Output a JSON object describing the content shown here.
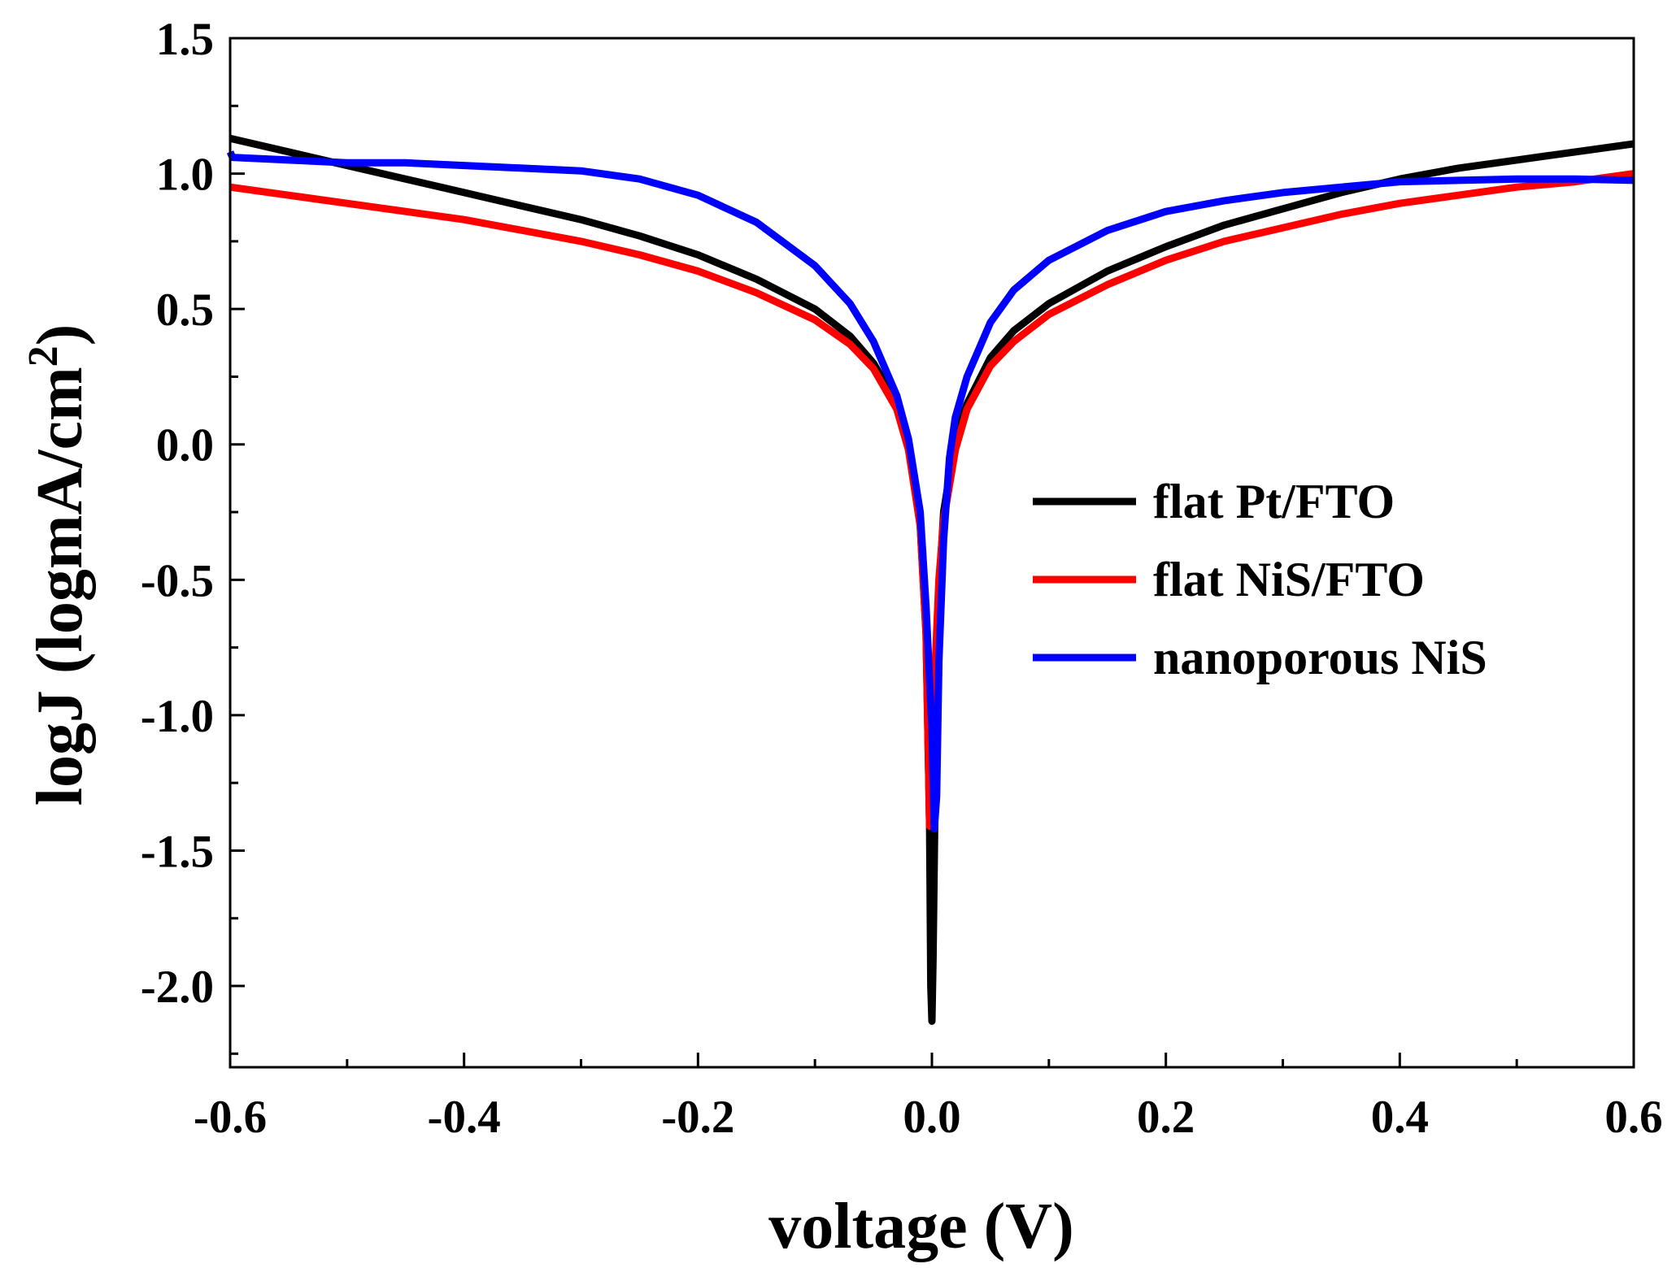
{
  "chart_data": {
    "type": "line",
    "title": "",
    "xlabel": "voltage (V)",
    "ylabel_main": "logJ (logmA/cm",
    "ylabel_sup": "2",
    "ylabel_close": ")",
    "xlim": [
      -0.6,
      0.6
    ],
    "ylim": [
      -2.3,
      1.5
    ],
    "x_ticks": [
      -0.6,
      -0.4,
      -0.2,
      0.0,
      0.2,
      0.4,
      0.6
    ],
    "x_tick_labels": [
      "-0.6",
      "-0.4",
      "-0.2",
      "0.0",
      "0.2",
      "0.4",
      "0.6"
    ],
    "y_ticks": [
      -2.0,
      -1.5,
      -1.0,
      -0.5,
      0.0,
      0.5,
      1.0,
      1.5
    ],
    "y_tick_labels": [
      "-2.0",
      "-1.5",
      "-1.0",
      "-0.5",
      "0.0",
      "0.5",
      "1.0",
      "1.5"
    ],
    "legend_position": "center-right",
    "series": [
      {
        "name": "flat Pt/FTO",
        "color": "#000000",
        "points": [
          [
            -0.6,
            1.13
          ],
          [
            -0.55,
            1.08
          ],
          [
            -0.5,
            1.03
          ],
          [
            -0.45,
            0.98
          ],
          [
            -0.4,
            0.93
          ],
          [
            -0.35,
            0.88
          ],
          [
            -0.3,
            0.83
          ],
          [
            -0.25,
            0.77
          ],
          [
            -0.2,
            0.7
          ],
          [
            -0.15,
            0.61
          ],
          [
            -0.1,
            0.5
          ],
          [
            -0.07,
            0.4
          ],
          [
            -0.05,
            0.3
          ],
          [
            -0.03,
            0.15
          ],
          [
            -0.02,
            0.0
          ],
          [
            -0.01,
            -0.3
          ],
          [
            -0.005,
            -0.7
          ],
          [
            -0.002,
            -1.4
          ],
          [
            -0.001,
            -2.0
          ],
          [
            0.0,
            -2.13
          ],
          [
            0.001,
            -1.9
          ],
          [
            0.003,
            -1.2
          ],
          [
            0.006,
            -0.55
          ],
          [
            0.01,
            -0.25
          ],
          [
            0.02,
            0.02
          ],
          [
            0.03,
            0.15
          ],
          [
            0.05,
            0.32
          ],
          [
            0.07,
            0.42
          ],
          [
            0.1,
            0.52
          ],
          [
            0.15,
            0.64
          ],
          [
            0.2,
            0.73
          ],
          [
            0.25,
            0.81
          ],
          [
            0.3,
            0.87
          ],
          [
            0.35,
            0.93
          ],
          [
            0.4,
            0.98
          ],
          [
            0.45,
            1.02
          ],
          [
            0.5,
            1.05
          ],
          [
            0.55,
            1.08
          ],
          [
            0.6,
            1.11
          ]
        ]
      },
      {
        "name": "flat NiS/FTO",
        "color": "#ff0000",
        "points": [
          [
            -0.6,
            0.95
          ],
          [
            -0.55,
            0.92
          ],
          [
            -0.5,
            0.89
          ],
          [
            -0.45,
            0.86
          ],
          [
            -0.4,
            0.83
          ],
          [
            -0.35,
            0.79
          ],
          [
            -0.3,
            0.75
          ],
          [
            -0.25,
            0.7
          ],
          [
            -0.2,
            0.64
          ],
          [
            -0.15,
            0.56
          ],
          [
            -0.1,
            0.46
          ],
          [
            -0.07,
            0.37
          ],
          [
            -0.05,
            0.28
          ],
          [
            -0.03,
            0.13
          ],
          [
            -0.02,
            -0.02
          ],
          [
            -0.01,
            -0.3
          ],
          [
            -0.005,
            -0.7
          ],
          [
            -0.002,
            -1.41
          ],
          [
            0.0,
            -1.2
          ],
          [
            0.003,
            -0.8
          ],
          [
            0.006,
            -0.5
          ],
          [
            0.01,
            -0.28
          ],
          [
            0.02,
            -0.02
          ],
          [
            0.03,
            0.13
          ],
          [
            0.05,
            0.29
          ],
          [
            0.07,
            0.38
          ],
          [
            0.1,
            0.48
          ],
          [
            0.15,
            0.59
          ],
          [
            0.2,
            0.68
          ],
          [
            0.25,
            0.75
          ],
          [
            0.3,
            0.8
          ],
          [
            0.35,
            0.85
          ],
          [
            0.4,
            0.89
          ],
          [
            0.45,
            0.92
          ],
          [
            0.5,
            0.95
          ],
          [
            0.55,
            0.97
          ],
          [
            0.6,
            1.0
          ]
        ]
      },
      {
        "name": "nanoporous NiS",
        "color": "#0000ff",
        "points": [
          [
            -0.6,
            1.08
          ],
          [
            -0.598,
            1.06
          ],
          [
            -0.55,
            1.05
          ],
          [
            -0.5,
            1.04
          ],
          [
            -0.45,
            1.04
          ],
          [
            -0.4,
            1.03
          ],
          [
            -0.35,
            1.02
          ],
          [
            -0.3,
            1.01
          ],
          [
            -0.25,
            0.98
          ],
          [
            -0.2,
            0.92
          ],
          [
            -0.15,
            0.82
          ],
          [
            -0.1,
            0.66
          ],
          [
            -0.07,
            0.52
          ],
          [
            -0.05,
            0.38
          ],
          [
            -0.03,
            0.18
          ],
          [
            -0.02,
            0.02
          ],
          [
            -0.01,
            -0.25
          ],
          [
            -0.005,
            -0.6
          ],
          [
            0.0,
            -1.05
          ],
          [
            0.002,
            -1.42
          ],
          [
            0.004,
            -1.3
          ],
          [
            0.006,
            -0.8
          ],
          [
            0.01,
            -0.35
          ],
          [
            0.015,
            -0.05
          ],
          [
            0.02,
            0.1
          ],
          [
            0.03,
            0.25
          ],
          [
            0.05,
            0.45
          ],
          [
            0.07,
            0.57
          ],
          [
            0.1,
            0.68
          ],
          [
            0.15,
            0.79
          ],
          [
            0.2,
            0.86
          ],
          [
            0.25,
            0.9
          ],
          [
            0.3,
            0.93
          ],
          [
            0.35,
            0.95
          ],
          [
            0.4,
            0.97
          ],
          [
            0.45,
            0.975
          ],
          [
            0.5,
            0.98
          ],
          [
            0.55,
            0.98
          ],
          [
            0.6,
            0.975
          ]
        ]
      }
    ]
  }
}
